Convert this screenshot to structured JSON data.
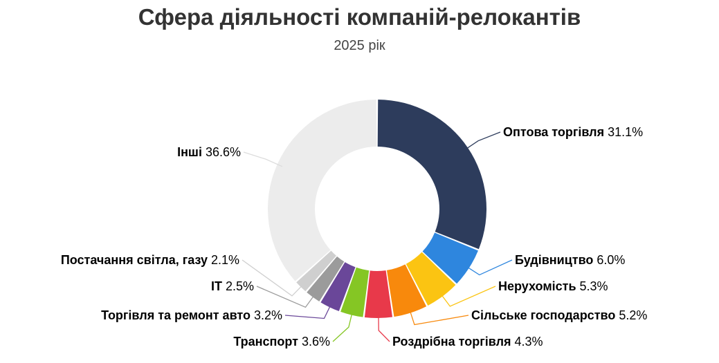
{
  "title": "Сфера діяльності компаній-релокантів",
  "subtitle": "2025 рік",
  "chart_data": {
    "type": "pie",
    "variant": "donut",
    "title": "Сфера діяльності компаній-релокантів",
    "subtitle": "2025 рік",
    "unit": "%",
    "slices": [
      {
        "label": "Оптова торгівля",
        "value": 31.1,
        "color": "#2d3c5c"
      },
      {
        "label": "Будівництво",
        "value": 6.0,
        "color": "#2e86de"
      },
      {
        "label": "Нерухомість",
        "value": 5.3,
        "color": "#fbc412"
      },
      {
        "label": "Сільське господарство",
        "value": 5.2,
        "color": "#f8890c"
      },
      {
        "label": "Роздрібна торгівля",
        "value": 4.3,
        "color": "#e8394a"
      },
      {
        "label": "Транспорт",
        "value": 3.6,
        "color": "#85c624"
      },
      {
        "label": "Торгівля та ремонт авто",
        "value": 3.2,
        "color": "#6a4799"
      },
      {
        "label": "IT",
        "value": 2.5,
        "color": "#9b9b9b"
      },
      {
        "label": "Постачання світла, газу",
        "value": 2.1,
        "color": "#cfcfcf"
      },
      {
        "label": "Інші",
        "value": 36.6,
        "color": "#ececec"
      }
    ]
  }
}
